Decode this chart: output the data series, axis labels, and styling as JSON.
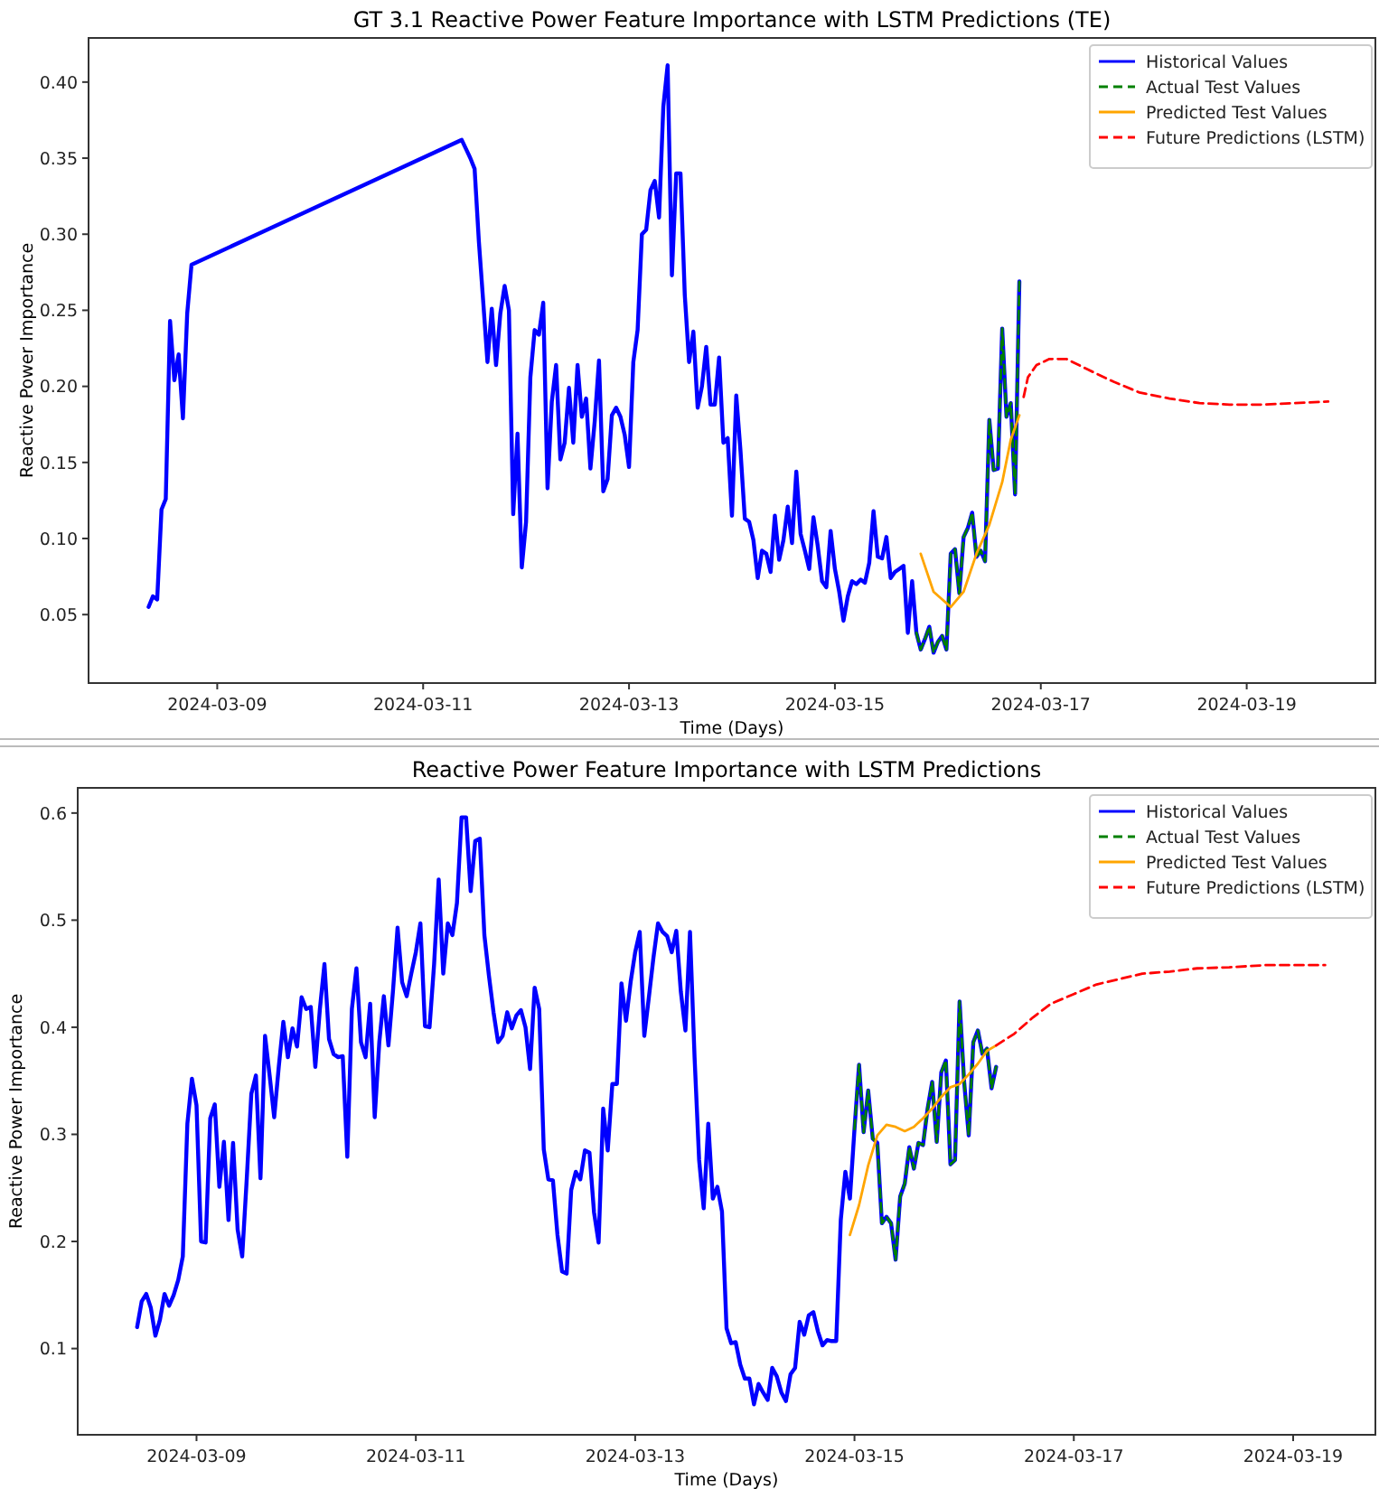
{
  "chart_data": [
    {
      "type": "line",
      "title": "GT 3.1 Reactive Power Feature Importance with LSTM Predictions (TE)",
      "xlabel": "Time (Days)",
      "ylabel": "Reactive Power Importance",
      "legend": "top right",
      "xlim": [
        "2024-03-07T18:00",
        "2024-03-20T06:00"
      ],
      "xticks": [
        "2024-03-09",
        "2024-03-11",
        "2024-03-13",
        "2024-03-15",
        "2024-03-17",
        "2024-03-19"
      ],
      "ylim": [
        0.005,
        0.429
      ],
      "yticks": [
        {
          "value": 0.05,
          "label": "0.05"
        },
        {
          "value": 0.1,
          "label": "0.10"
        },
        {
          "value": 0.15,
          "label": "0.15"
        },
        {
          "value": 0.2,
          "label": "0.20"
        },
        {
          "value": 0.25,
          "label": "0.25"
        },
        {
          "value": 0.3,
          "label": "0.30"
        },
        {
          "value": 0.35,
          "label": "0.35"
        },
        {
          "value": 0.4,
          "label": "0.40"
        }
      ],
      "series": [
        {
          "name": "Historical Values",
          "color": "#0000ff",
          "line_style": "solid",
          "x": [
            "2024-03-08T08:00",
            "2024-03-08T09:00",
            "2024-03-08T10:00",
            "2024-03-08T11:00",
            "2024-03-08T12:00",
            "2024-03-08T13:00",
            "2024-03-08T14:00",
            "2024-03-08T15:00",
            "2024-03-08T16:00",
            "2024-03-08T17:00",
            "2024-03-08T18:00",
            "2024-03-11T09:00",
            "2024-03-11T10:00",
            "2024-03-11T11:00",
            "2024-03-11T12:00",
            "2024-03-11T13:00",
            "2024-03-11T14:00",
            "2024-03-11T15:00",
            "2024-03-11T16:00",
            "2024-03-11T17:00",
            "2024-03-11T18:00",
            "2024-03-11T19:00",
            "2024-03-11T20:00",
            "2024-03-11T21:00",
            "2024-03-11T22:00",
            "2024-03-11T23:00",
            "2024-03-12T00:00",
            "2024-03-12T01:00",
            "2024-03-12T02:00",
            "2024-03-12T03:00",
            "2024-03-12T04:00",
            "2024-03-12T05:00",
            "2024-03-12T06:00",
            "2024-03-12T07:00",
            "2024-03-12T08:00",
            "2024-03-12T09:00",
            "2024-03-12T10:00",
            "2024-03-12T11:00",
            "2024-03-12T12:00",
            "2024-03-12T13:00",
            "2024-03-12T14:00",
            "2024-03-12T15:00",
            "2024-03-12T16:00",
            "2024-03-12T17:00",
            "2024-03-12T18:00",
            "2024-03-12T19:00",
            "2024-03-12T20:00",
            "2024-03-12T21:00",
            "2024-03-12T22:00",
            "2024-03-12T23:00",
            "2024-03-13T00:00",
            "2024-03-13T01:00",
            "2024-03-13T02:00",
            "2024-03-13T03:00",
            "2024-03-13T04:00",
            "2024-03-13T05:00",
            "2024-03-13T06:00",
            "2024-03-13T07:00",
            "2024-03-13T08:00",
            "2024-03-13T09:00",
            "2024-03-13T10:00",
            "2024-03-13T11:00",
            "2024-03-13T12:00",
            "2024-03-13T13:00",
            "2024-03-13T14:00",
            "2024-03-13T15:00",
            "2024-03-13T16:00",
            "2024-03-13T17:00",
            "2024-03-13T18:00",
            "2024-03-13T19:00",
            "2024-03-13T20:00",
            "2024-03-13T21:00",
            "2024-03-13T22:00",
            "2024-03-13T23:00",
            "2024-03-14T00:00",
            "2024-03-14T01:00",
            "2024-03-14T02:00",
            "2024-03-14T03:00",
            "2024-03-14T04:00",
            "2024-03-14T05:00",
            "2024-03-14T06:00",
            "2024-03-14T07:00",
            "2024-03-14T08:00",
            "2024-03-14T09:00",
            "2024-03-14T10:00",
            "2024-03-14T11:00",
            "2024-03-14T12:00",
            "2024-03-14T13:00",
            "2024-03-14T14:00",
            "2024-03-14T15:00",
            "2024-03-14T16:00",
            "2024-03-14T17:00",
            "2024-03-14T18:00",
            "2024-03-14T19:00",
            "2024-03-14T20:00",
            "2024-03-14T21:00",
            "2024-03-14T22:00",
            "2024-03-14T23:00",
            "2024-03-15T00:00",
            "2024-03-15T01:00",
            "2024-03-15T02:00",
            "2024-03-15T03:00",
            "2024-03-15T04:00",
            "2024-03-15T05:00",
            "2024-03-15T06:00",
            "2024-03-15T07:00",
            "2024-03-15T08:00",
            "2024-03-15T09:00",
            "2024-03-15T10:00",
            "2024-03-15T11:00",
            "2024-03-15T12:00",
            "2024-03-15T13:00",
            "2024-03-15T14:00",
            "2024-03-15T15:00",
            "2024-03-15T16:00",
            "2024-03-15T17:00",
            "2024-03-15T18:00",
            "2024-03-15T19:00",
            "2024-03-15T20:00",
            "2024-03-15T21:00",
            "2024-03-15T22:00",
            "2024-03-15T23:00",
            "2024-03-16T00:00",
            "2024-03-16T01:00",
            "2024-03-16T02:00",
            "2024-03-16T03:00",
            "2024-03-16T04:00",
            "2024-03-16T05:00",
            "2024-03-16T06:00",
            "2024-03-16T07:00",
            "2024-03-16T08:00",
            "2024-03-16T09:00",
            "2024-03-16T10:00",
            "2024-03-16T11:00",
            "2024-03-16T12:00",
            "2024-03-16T13:00",
            "2024-03-16T14:00",
            "2024-03-16T15:00",
            "2024-03-16T16:00",
            "2024-03-16T17:00",
            "2024-03-16T18:00",
            "2024-03-16T19:00"
          ],
          "values": [
            0.055,
            0.062,
            0.06,
            0.119,
            0.126,
            0.243,
            0.204,
            0.221,
            0.179,
            0.248,
            0.28,
            0.362,
            0.356,
            0.35,
            0.343,
            0.295,
            0.256,
            0.216,
            0.251,
            0.214,
            0.248,
            0.266,
            0.25,
            0.116,
            0.169,
            0.081,
            0.111,
            0.206,
            0.237,
            0.234,
            0.255,
            0.133,
            0.19,
            0.214,
            0.152,
            0.163,
            0.199,
            0.163,
            0.214,
            0.18,
            0.192,
            0.146,
            0.177,
            0.217,
            0.131,
            0.139,
            0.181,
            0.186,
            0.18,
            0.168,
            0.147,
            0.216,
            0.237,
            0.3,
            0.303,
            0.329,
            0.335,
            0.311,
            0.384,
            0.411,
            0.273,
            0.34,
            0.34,
            0.26,
            0.216,
            0.236,
            0.186,
            0.2,
            0.226,
            0.188,
            0.188,
            0.219,
            0.163,
            0.166,
            0.115,
            0.194,
            0.157,
            0.113,
            0.111,
            0.099,
            0.074,
            0.092,
            0.09,
            0.078,
            0.115,
            0.086,
            0.099,
            0.121,
            0.097,
            0.144,
            0.103,
            0.092,
            0.08,
            0.114,
            0.095,
            0.072,
            0.068,
            0.105,
            0.08,
            0.065,
            0.046,
            0.062,
            0.072,
            0.07,
            0.073,
            0.071,
            0.084,
            0.118,
            0.088,
            0.087,
            0.101,
            0.074,
            0.078,
            0.08,
            0.082,
            0.038,
            0.072,
            0.038,
            0.027,
            0.034,
            0.042,
            0.025,
            0.032,
            0.036,
            0.027,
            0.09,
            0.093,
            0.064,
            0.101,
            0.107,
            0.117,
            0.088,
            0.092,
            0.085,
            0.178,
            0.145,
            0.146,
            0.238,
            0.18,
            0.189,
            0.129,
            0.269
          ]
        },
        {
          "name": "Actual Test Values",
          "color": "#008000",
          "line_style": "dashed",
          "x": [
            "2024-03-15T19:00",
            "2024-03-15T20:00",
            "2024-03-15T21:00",
            "2024-03-15T22:00",
            "2024-03-15T23:00",
            "2024-03-16T00:00",
            "2024-03-16T01:00",
            "2024-03-16T02:00",
            "2024-03-16T03:00",
            "2024-03-16T04:00",
            "2024-03-16T05:00",
            "2024-03-16T06:00",
            "2024-03-16T07:00",
            "2024-03-16T08:00",
            "2024-03-16T09:00",
            "2024-03-16T10:00",
            "2024-03-16T11:00",
            "2024-03-16T12:00",
            "2024-03-16T13:00",
            "2024-03-16T14:00",
            "2024-03-16T15:00",
            "2024-03-16T16:00",
            "2024-03-16T17:00",
            "2024-03-16T18:00",
            "2024-03-16T19:00"
          ],
          "values": [
            0.038,
            0.027,
            0.034,
            0.042,
            0.025,
            0.032,
            0.036,
            0.027,
            0.09,
            0.093,
            0.064,
            0.101,
            0.107,
            0.117,
            0.088,
            0.092,
            0.085,
            0.178,
            0.145,
            0.146,
            0.238,
            0.18,
            0.189,
            0.129,
            0.269
          ]
        },
        {
          "name": "Predicted Test Values",
          "color": "#ffa500",
          "line_style": "solid",
          "x": [
            "2024-03-15T20:00",
            "2024-03-15T23:00",
            "2024-03-16T03:00",
            "2024-03-16T06:00",
            "2024-03-16T09:00",
            "2024-03-16T12:00",
            "2024-03-16T15:00",
            "2024-03-16T17:00",
            "2024-03-16T19:00"
          ],
          "values": [
            0.09,
            0.065,
            0.055,
            0.065,
            0.09,
            0.109,
            0.137,
            0.165,
            0.181
          ]
        },
        {
          "name": "Future Predictions (LSTM)",
          "color": "#ff0000",
          "line_style": "dashed",
          "x": [
            "2024-03-16T20:00",
            "2024-03-16T21:00",
            "2024-03-16T23:00",
            "2024-03-17T02:00",
            "2024-03-17T06:00",
            "2024-03-17T11:00",
            "2024-03-17T17:00",
            "2024-03-17T23:00",
            "2024-03-18T06:00",
            "2024-03-18T13:00",
            "2024-03-18T20:00",
            "2024-03-19T04:00",
            "2024-03-19T11:00",
            "2024-03-19T19:00"
          ],
          "values": [
            0.193,
            0.206,
            0.214,
            0.218,
            0.218,
            0.211,
            0.203,
            0.196,
            0.192,
            0.189,
            0.188,
            0.188,
            0.189,
            0.19
          ]
        }
      ]
    },
    {
      "type": "line",
      "title": "Reactive Power Feature Importance with LSTM Predictions",
      "xlabel": "Time (Days)",
      "ylabel": "Reactive Power Importance",
      "legend": "top right",
      "xlim": [
        "2024-03-07T22:00",
        "2024-03-19T18:00"
      ],
      "xticks": [
        "2024-03-09",
        "2024-03-11",
        "2024-03-13",
        "2024-03-15",
        "2024-03-17",
        "2024-03-19"
      ],
      "ylim": [
        0.0195,
        0.6235
      ],
      "yticks": [
        0.1,
        0.2,
        0.3,
        0.4,
        0.5,
        0.6
      ],
      "series": [
        {
          "name": "Historical Values",
          "color": "#0000ff",
          "line_style": "solid",
          "x": [
            "2024-03-08T11:00",
            "2024-03-08T12:00",
            "2024-03-08T13:00",
            "2024-03-08T14:00",
            "2024-03-08T15:00",
            "2024-03-08T16:00",
            "2024-03-08T17:00",
            "2024-03-08T18:00",
            "2024-03-08T19:00",
            "2024-03-08T20:00",
            "2024-03-08T21:00",
            "2024-03-08T22:00",
            "2024-03-08T23:00",
            "2024-03-09T00:00",
            "2024-03-09T01:00",
            "2024-03-09T02:00",
            "2024-03-09T03:00",
            "2024-03-09T04:00",
            "2024-03-09T05:00",
            "2024-03-09T06:00",
            "2024-03-09T07:00",
            "2024-03-09T08:00",
            "2024-03-09T09:00",
            "2024-03-09T10:00",
            "2024-03-09T11:00",
            "2024-03-09T12:00",
            "2024-03-09T13:00",
            "2024-03-09T14:00",
            "2024-03-09T15:00",
            "2024-03-09T16:00",
            "2024-03-09T17:00",
            "2024-03-09T18:00",
            "2024-03-09T19:00",
            "2024-03-09T20:00",
            "2024-03-09T21:00",
            "2024-03-09T22:00",
            "2024-03-09T23:00",
            "2024-03-10T00:00",
            "2024-03-10T01:00",
            "2024-03-10T02:00",
            "2024-03-10T03:00",
            "2024-03-10T04:00",
            "2024-03-10T05:00",
            "2024-03-10T06:00",
            "2024-03-10T07:00",
            "2024-03-10T08:00",
            "2024-03-10T09:00",
            "2024-03-10T10:00",
            "2024-03-10T11:00",
            "2024-03-10T12:00",
            "2024-03-10T13:00",
            "2024-03-10T14:00",
            "2024-03-10T15:00",
            "2024-03-10T16:00",
            "2024-03-10T17:00",
            "2024-03-10T18:00",
            "2024-03-10T19:00",
            "2024-03-10T20:00",
            "2024-03-10T21:00",
            "2024-03-10T22:00",
            "2024-03-10T23:00",
            "2024-03-11T00:00",
            "2024-03-11T01:00",
            "2024-03-11T02:00",
            "2024-03-11T03:00",
            "2024-03-11T04:00",
            "2024-03-11T05:00",
            "2024-03-11T06:00",
            "2024-03-11T07:00",
            "2024-03-11T08:00",
            "2024-03-11T09:00",
            "2024-03-11T10:00",
            "2024-03-11T11:00",
            "2024-03-11T12:00",
            "2024-03-11T13:00",
            "2024-03-11T14:00",
            "2024-03-11T15:00",
            "2024-03-11T16:00",
            "2024-03-11T17:00",
            "2024-03-11T18:00",
            "2024-03-11T19:00",
            "2024-03-11T20:00",
            "2024-03-11T21:00",
            "2024-03-11T22:00",
            "2024-03-11T23:00",
            "2024-03-12T00:00",
            "2024-03-12T01:00",
            "2024-03-12T02:00",
            "2024-03-12T03:00",
            "2024-03-12T04:00",
            "2024-03-12T05:00",
            "2024-03-12T06:00",
            "2024-03-12T07:00",
            "2024-03-12T08:00",
            "2024-03-12T09:00",
            "2024-03-12T10:00",
            "2024-03-12T11:00",
            "2024-03-12T12:00",
            "2024-03-12T13:00",
            "2024-03-12T14:00",
            "2024-03-12T15:00",
            "2024-03-12T16:00",
            "2024-03-12T17:00",
            "2024-03-12T18:00",
            "2024-03-12T19:00",
            "2024-03-12T20:00",
            "2024-03-12T21:00",
            "2024-03-12T22:00",
            "2024-03-12T23:00",
            "2024-03-13T00:00",
            "2024-03-13T01:00",
            "2024-03-13T02:00",
            "2024-03-13T03:00",
            "2024-03-13T04:00",
            "2024-03-13T05:00",
            "2024-03-13T06:00",
            "2024-03-13T07:00",
            "2024-03-13T08:00",
            "2024-03-13T09:00",
            "2024-03-13T10:00",
            "2024-03-13T11:00",
            "2024-03-13T12:00",
            "2024-03-13T13:00",
            "2024-03-13T14:00",
            "2024-03-13T15:00",
            "2024-03-13T16:00",
            "2024-03-13T17:00",
            "2024-03-13T18:00",
            "2024-03-13T19:00",
            "2024-03-13T20:00",
            "2024-03-13T21:00",
            "2024-03-13T22:00",
            "2024-03-13T23:00",
            "2024-03-14T00:00",
            "2024-03-14T01:00",
            "2024-03-14T02:00",
            "2024-03-14T03:00",
            "2024-03-14T04:00",
            "2024-03-14T05:00",
            "2024-03-14T06:00",
            "2024-03-14T07:00",
            "2024-03-14T08:00",
            "2024-03-14T09:00",
            "2024-03-14T10:00",
            "2024-03-14T11:00",
            "2024-03-14T12:00",
            "2024-03-14T13:00",
            "2024-03-14T14:00",
            "2024-03-14T15:00",
            "2024-03-14T16:00",
            "2024-03-14T17:00",
            "2024-03-14T18:00",
            "2024-03-14T19:00",
            "2024-03-14T20:00",
            "2024-03-14T21:00",
            "2024-03-14T22:00",
            "2024-03-14T23:00",
            "2024-03-15T00:00",
            "2024-03-15T01:00",
            "2024-03-15T02:00",
            "2024-03-15T03:00",
            "2024-03-15T04:00",
            "2024-03-15T05:00",
            "2024-03-15T06:00",
            "2024-03-15T07:00",
            "2024-03-15T08:00",
            "2024-03-15T09:00",
            "2024-03-15T10:00",
            "2024-03-15T11:00",
            "2024-03-15T12:00",
            "2024-03-15T13:00",
            "2024-03-15T14:00",
            "2024-03-15T15:00",
            "2024-03-15T16:00",
            "2024-03-15T17:00",
            "2024-03-15T18:00",
            "2024-03-15T19:00",
            "2024-03-15T20:00",
            "2024-03-15T21:00",
            "2024-03-15T22:00",
            "2024-03-15T23:00",
            "2024-03-16T00:00",
            "2024-03-16T01:00",
            "2024-03-16T02:00",
            "2024-03-16T03:00",
            "2024-03-16T04:00",
            "2024-03-16T05:00",
            "2024-03-16T06:00",
            "2024-03-16T07:00"
          ],
          "values": [
            0.12,
            0.144,
            0.151,
            0.138,
            0.112,
            0.127,
            0.151,
            0.14,
            0.15,
            0.164,
            0.186,
            0.31,
            0.352,
            0.327,
            0.2,
            0.199,
            0.315,
            0.328,
            0.251,
            0.293,
            0.22,
            0.292,
            0.211,
            0.186,
            0.259,
            0.338,
            0.355,
            0.259,
            0.392,
            0.355,
            0.316,
            0.363,
            0.405,
            0.372,
            0.399,
            0.382,
            0.428,
            0.417,
            0.419,
            0.363,
            0.417,
            0.459,
            0.389,
            0.375,
            0.372,
            0.373,
            0.279,
            0.417,
            0.455,
            0.386,
            0.372,
            0.422,
            0.316,
            0.386,
            0.429,
            0.383,
            0.434,
            0.493,
            0.442,
            0.429,
            0.45,
            0.47,
            0.497,
            0.401,
            0.4,
            0.459,
            0.538,
            0.45,
            0.497,
            0.486,
            0.516,
            0.596,
            0.596,
            0.527,
            0.574,
            0.576,
            0.486,
            0.448,
            0.414,
            0.386,
            0.392,
            0.414,
            0.399,
            0.411,
            0.416,
            0.4,
            0.361,
            0.437,
            0.417,
            0.286,
            0.258,
            0.257,
            0.206,
            0.172,
            0.17,
            0.248,
            0.265,
            0.258,
            0.285,
            0.283,
            0.227,
            0.199,
            0.324,
            0.285,
            0.347,
            0.347,
            0.441,
            0.406,
            0.442,
            0.47,
            0.489,
            0.392,
            0.428,
            0.465,
            0.497,
            0.489,
            0.485,
            0.47,
            0.49,
            0.433,
            0.397,
            0.489,
            0.372,
            0.276,
            0.231,
            0.31,
            0.24,
            0.251,
            0.228,
            0.119,
            0.105,
            0.106,
            0.085,
            0.072,
            0.072,
            0.048,
            0.067,
            0.059,
            0.052,
            0.082,
            0.074,
            0.059,
            0.051,
            0.076,
            0.082,
            0.125,
            0.113,
            0.131,
            0.134,
            0.116,
            0.103,
            0.108,
            0.107,
            0.107,
            0.22,
            0.265,
            0.24,
            0.305,
            0.365,
            0.302,
            0.341,
            0.296,
            0.292,
            0.217,
            0.223,
            0.217,
            0.183,
            0.242,
            0.254,
            0.288,
            0.268,
            0.292,
            0.29,
            0.324,
            0.349,
            0.293,
            0.358,
            0.369,
            0.272,
            0.276,
            0.424,
            0.349,
            0.299,
            0.386,
            0.397,
            0.375,
            0.38,
            0.343,
            0.363
          ]
        },
        {
          "name": "Actual Test Values",
          "color": "#008000",
          "line_style": "dashed",
          "x": [
            "2024-03-15T00:00",
            "2024-03-15T01:00",
            "2024-03-15T02:00",
            "2024-03-15T03:00",
            "2024-03-15T04:00",
            "2024-03-15T05:00",
            "2024-03-15T06:00",
            "2024-03-15T07:00",
            "2024-03-15T08:00",
            "2024-03-15T09:00",
            "2024-03-15T10:00",
            "2024-03-15T11:00",
            "2024-03-15T12:00",
            "2024-03-15T13:00",
            "2024-03-15T14:00",
            "2024-03-15T15:00",
            "2024-03-15T16:00",
            "2024-03-15T17:00",
            "2024-03-15T18:00",
            "2024-03-15T19:00",
            "2024-03-15T20:00",
            "2024-03-15T21:00",
            "2024-03-15T22:00",
            "2024-03-15T23:00",
            "2024-03-16T00:00",
            "2024-03-16T01:00",
            "2024-03-16T02:00",
            "2024-03-16T03:00",
            "2024-03-16T04:00",
            "2024-03-16T05:00",
            "2024-03-16T06:00",
            "2024-03-16T07:00"
          ],
          "values": [
            0.305,
            0.365,
            0.302,
            0.341,
            0.296,
            0.292,
            0.217,
            0.223,
            0.217,
            0.183,
            0.242,
            0.254,
            0.288,
            0.268,
            0.292,
            0.29,
            0.324,
            0.349,
            0.293,
            0.358,
            0.369,
            0.272,
            0.276,
            0.424,
            0.349,
            0.299,
            0.386,
            0.397,
            0.375,
            0.38,
            0.343,
            0.363
          ]
        },
        {
          "name": "Predicted Test Values",
          "color": "#ffa500",
          "line_style": "solid",
          "x": [
            "2024-03-14T23:00",
            "2024-03-15T01:00",
            "2024-03-15T03:00",
            "2024-03-15T05:00",
            "2024-03-15T07:00",
            "2024-03-15T09:00",
            "2024-03-15T11:00",
            "2024-03-15T13:00",
            "2024-03-15T15:00",
            "2024-03-15T17:00",
            "2024-03-15T19:00",
            "2024-03-15T21:00",
            "2024-03-15T23:00",
            "2024-03-16T01:00",
            "2024-03-16T03:00",
            "2024-03-16T05:00",
            "2024-03-16T07:00"
          ],
          "values": [
            0.206,
            0.234,
            0.271,
            0.299,
            0.309,
            0.307,
            0.303,
            0.307,
            0.315,
            0.324,
            0.335,
            0.344,
            0.347,
            0.356,
            0.366,
            0.378,
            0.383
          ]
        },
        {
          "name": "Future Predictions (LSTM)",
          "color": "#ff0000",
          "line_style": "dashed",
          "x": [
            "2024-03-16T07:00",
            "2024-03-16T11:00",
            "2024-03-16T15:00",
            "2024-03-16T19:00",
            "2024-03-17T00:00",
            "2024-03-17T05:00",
            "2024-03-17T10:00",
            "2024-03-17T15:00",
            "2024-03-17T21:00",
            "2024-03-18T03:00",
            "2024-03-18T10:00",
            "2024-03-18T18:00",
            "2024-03-19T01:00",
            "2024-03-19T07:00"
          ],
          "values": [
            0.383,
            0.394,
            0.409,
            0.422,
            0.431,
            0.44,
            0.445,
            0.45,
            0.452,
            0.455,
            0.456,
            0.458,
            0.458,
            0.458
          ]
        }
      ]
    }
  ]
}
